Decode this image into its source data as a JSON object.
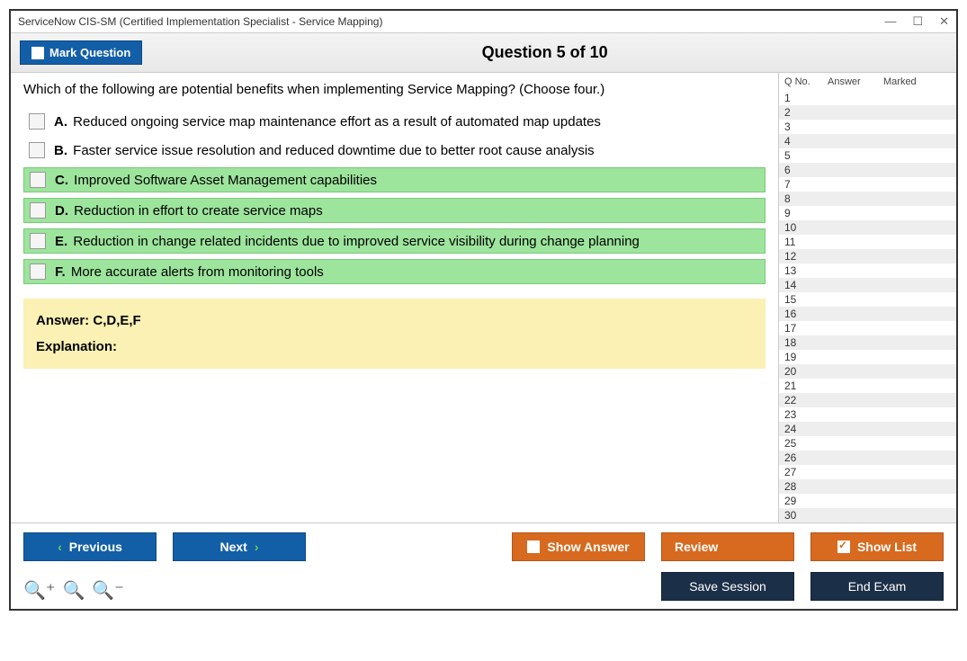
{
  "window": {
    "title": "ServiceNow CIS-SM (Certified Implementation Specialist - Service Mapping)"
  },
  "header": {
    "mark_label": "Mark Question",
    "question_title": "Question 5 of 10"
  },
  "question": {
    "text": "Which of the following are potential benefits when implementing Service Mapping? (Choose four.)",
    "options": [
      {
        "letter": "A.",
        "text": "Reduced ongoing service map maintenance effort as a result of automated map updates",
        "correct": false
      },
      {
        "letter": "B.",
        "text": "Faster service issue resolution and reduced downtime due to better root cause analysis",
        "correct": false
      },
      {
        "letter": "C.",
        "text": "Improved Software Asset Management capabilities",
        "correct": true
      },
      {
        "letter": "D.",
        "text": "Reduction in effort to create service maps",
        "correct": true
      },
      {
        "letter": "E.",
        "text": "Reduction in change related incidents due to improved service visibility during change planning",
        "correct": true
      },
      {
        "letter": "F.",
        "text": "More accurate alerts from monitoring tools",
        "correct": true
      }
    ]
  },
  "answer": {
    "prefix": "Answer: ",
    "value": "C,D,E,F",
    "explanation_label": "Explanation:"
  },
  "sidebar": {
    "head_q": "Q No.",
    "head_a": "Answer",
    "head_m": "Marked",
    "total_rows": 30
  },
  "buttons": {
    "previous": "Previous",
    "next": "Next",
    "show_answer": "Show Answer",
    "review": "Review",
    "show_list": "Show List",
    "save_session": "Save Session",
    "end_exam": "End Exam"
  },
  "colors": {
    "blue_btn": "#135fa7",
    "orange_btn": "#d76a1f",
    "dark_btn": "#1c2f48",
    "correct_bg": "#9de49d",
    "answer_bg": "#fbf1b4"
  }
}
